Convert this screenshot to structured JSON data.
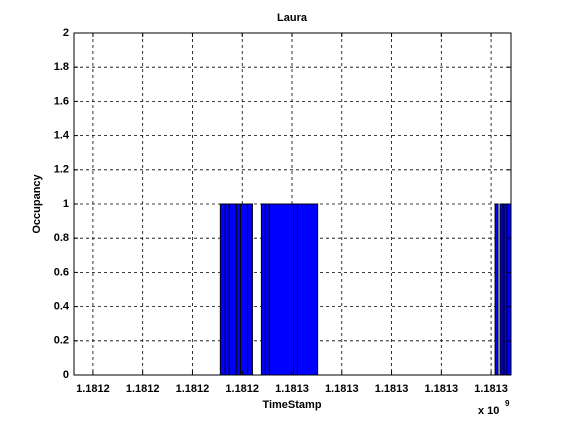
{
  "chart_data": {
    "type": "bar",
    "title": "Laura",
    "x_label": "TimeStamp",
    "y_label": "Occupancy",
    "x_multiplier": "x 10",
    "x_exponent": "9",
    "color": "#0000ff",
    "edge_color": "#000000",
    "x_start": [
      1181221200,
      1181223200,
      1181224800,
      1181227600,
      1181229300,
      1181232100,
      1181237700,
      1181239300,
      1181240900,
      1181250600,
      1181252200,
      1181331600,
      1181333600,
      1181335200,
      1181336400
    ],
    "x_end": [
      1181223200,
      1181224800,
      1181227600,
      1181229300,
      1181232100,
      1181234100,
      1181239300,
      1181240900,
      1181250600,
      1181252200,
      1181260300,
      1181332800,
      1181334800,
      1181336400,
      1181338000
    ],
    "values": [
      1,
      1,
      1,
      1,
      1,
      1,
      1,
      1,
      1,
      1,
      1,
      1,
      1,
      1,
      1
    ],
    "xlim": [
      1181162400,
      1181338000
    ],
    "xticks": [
      {
        "value": 1181170000,
        "label": "1.1812"
      },
      {
        "value": 1181190000,
        "label": "1.1812"
      },
      {
        "value": 1181210000,
        "label": "1.1812"
      },
      {
        "value": 1181230000,
        "label": "1.1812"
      },
      {
        "value": 1181250000,
        "label": "1.1813"
      },
      {
        "value": 1181270000,
        "label": "1.1813"
      },
      {
        "value": 1181290000,
        "label": "1.1813"
      },
      {
        "value": 1181310000,
        "label": "1.1813"
      },
      {
        "value": 1181330000,
        "label": "1.1813"
      }
    ],
    "ylim": [
      0,
      2
    ],
    "yticks": [
      0,
      0.2,
      0.4,
      0.6,
      0.8,
      1,
      1.2,
      1.4,
      1.6,
      1.8,
      2
    ],
    "grid": true
  }
}
